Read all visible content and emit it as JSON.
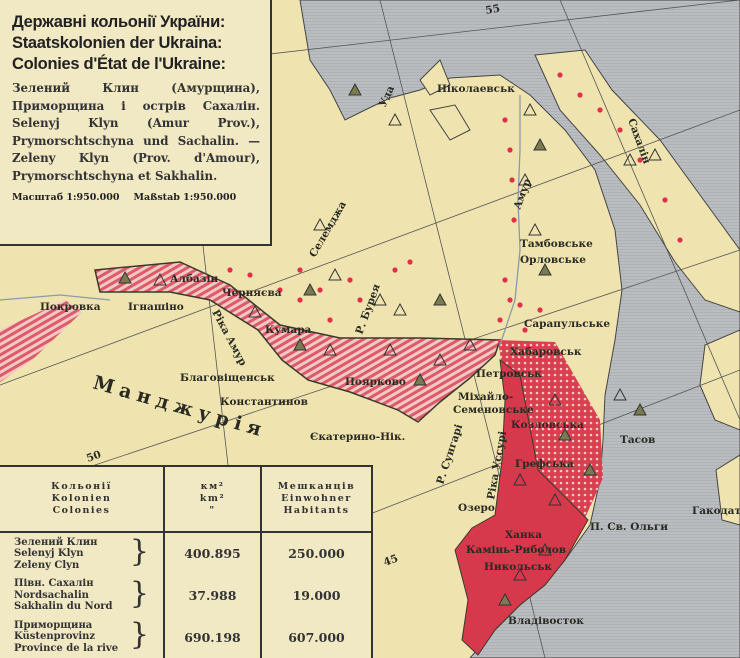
{
  "legend": {
    "title_uk": "Державні кольонії України:",
    "title_de": "Staatskolonien der Ukraina:",
    "title_fr": "Colonies d'État de l'Ukraine:",
    "desc_uk": "Зелений Клин (Амурщина), Приморщина і острів Сахалін.",
    "desc_de": "Selenyj Klyn (Amur Prov.), Prymorschtschyna und Sachalin. —",
    "desc_fr": "Zeleny Klyn (Prov. d'Amour), Prymorschtschyna et Sakhalin.",
    "scale_uk": "Масштаб 1:950.000",
    "scale_de": "Maßstab 1:950.000"
  },
  "table": {
    "headers": [
      "Кольонії\nKolonien\nColonies",
      "км²\nkm²\n\"",
      "Мешканців\nEinwohner\nHabitants"
    ],
    "rows": [
      {
        "name": "Зелений Клин\nSelenyj Klyn\nZeleny Clyn",
        "area": "400.895",
        "population": "250.000"
      },
      {
        "name": "Півн. Сахалін\nNordsachalin\nSakhalin du Nord",
        "area": "37.988",
        "population": "19.000"
      },
      {
        "name": "Приморщина\nKüstenprovinz\nProvince de la rive",
        "area": "690.198",
        "population": "607.000"
      }
    ]
  },
  "map": {
    "region_label": "Манджурія",
    "places": {
      "nikolaevsk": "Ніколаевськ",
      "sakhalin": "Сахалін",
      "uda": "Уда",
      "selemdzha": "Селемджа",
      "bureya": "Р. Бурея",
      "amur": "Амур",
      "tambovske": "Тамбовське",
      "orlovske": "Орловське",
      "sarapulske": "Сарапульське",
      "khabarovsk": "Хабаровськ",
      "petrovsk": "Петровськ",
      "mikhailo1": "Міхайло-",
      "mikhailo2": "Семеновське",
      "kozlovska": "Козловська",
      "tasov": "Тасов",
      "grefska": "Грефська",
      "ozero": "Озеро",
      "khanka": "Ханка",
      "kamin": "Камінь-Риболов",
      "nikolsk": "Никольськ",
      "vladivostok": "Владівосток",
      "olga": "П. Св. Ольги",
      "hakodate": "Гакодат",
      "sungari": "Р. Сунгарі",
      "ussuri": "Ріка Уссурі",
      "albazin": "Албазін",
      "pokrovka": "Покровка",
      "ignashino": "Ігнашіно",
      "chernyaeva": "Черняєва",
      "kumara": "Кумара",
      "rika_amur": "Ріка Амур",
      "blagoveshchensk": "Благовіщенськ",
      "konstantinov": "Константинов",
      "poyarkovo": "Поярково",
      "ekaterino": "Єкатерино-Нік."
    },
    "graticule": {
      "lat_55": "55",
      "lat_50": "50",
      "lat_45": "45"
    },
    "colors": {
      "land": "#efe4b0",
      "sea": "#b9bcbf",
      "colony": "#d6384c",
      "hatch": "#e07a86",
      "dots": "#e0304a",
      "marker": "#7a7a50"
    }
  }
}
